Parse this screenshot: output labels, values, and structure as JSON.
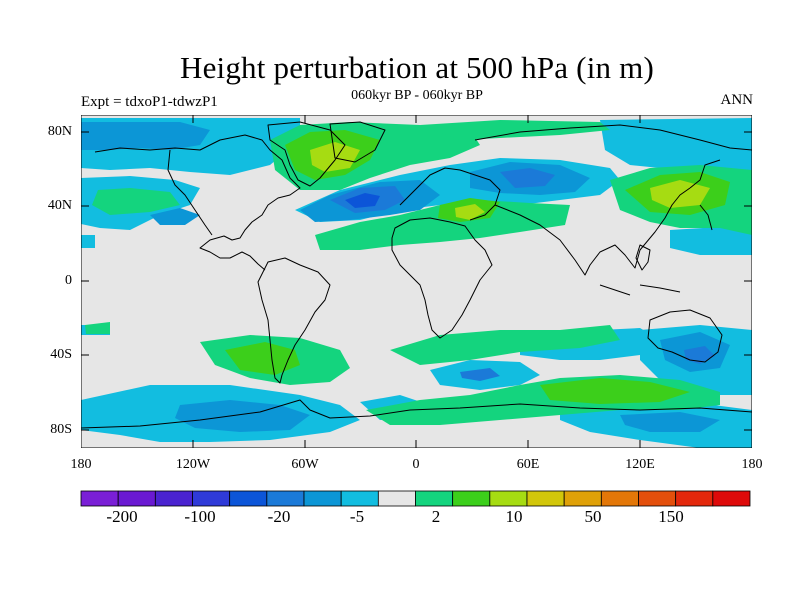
{
  "title": "Height perturbation at 500 hPa (in m)",
  "subtitle": "060kyr BP - 060kyr BP",
  "left_label": "Expt = tdxoP1-tdwzP1",
  "right_label": "ANN",
  "lat_labels": [
    "80N",
    "40N",
    "0",
    "40S",
    "80S"
  ],
  "lon_labels": [
    "180",
    "120W",
    "60W",
    "0",
    "60E",
    "120E",
    "180"
  ],
  "colorbar": {
    "colors": [
      "#7a1fd6",
      "#6a19d2",
      "#4a23d0",
      "#2f3ad8",
      "#0c55d8",
      "#1b7ad8",
      "#0c96d6",
      "#12bde0",
      "#e6e6e6",
      "#14d47e",
      "#3ccf1b",
      "#a6dc12",
      "#d2c60a",
      "#dfa108",
      "#e37708",
      "#e34f0c",
      "#e3280c",
      "#de0a0a"
    ],
    "labels": [
      "-200",
      "-100",
      "-20",
      "-5",
      "2",
      "10",
      "50",
      "150"
    ]
  },
  "map": {
    "background": "#e6e6e6",
    "regions": [
      {
        "level": "light-blue",
        "color": "#12bde0"
      },
      {
        "level": "mid-blue",
        "color": "#0c96d6"
      },
      {
        "level": "blue",
        "color": "#1b7ad8"
      },
      {
        "level": "dark-blue",
        "color": "#0c55d8"
      },
      {
        "level": "light-green",
        "color": "#14d47e"
      },
      {
        "level": "green",
        "color": "#3ccf1b"
      },
      {
        "level": "yellow-green",
        "color": "#a6dc12"
      }
    ]
  }
}
